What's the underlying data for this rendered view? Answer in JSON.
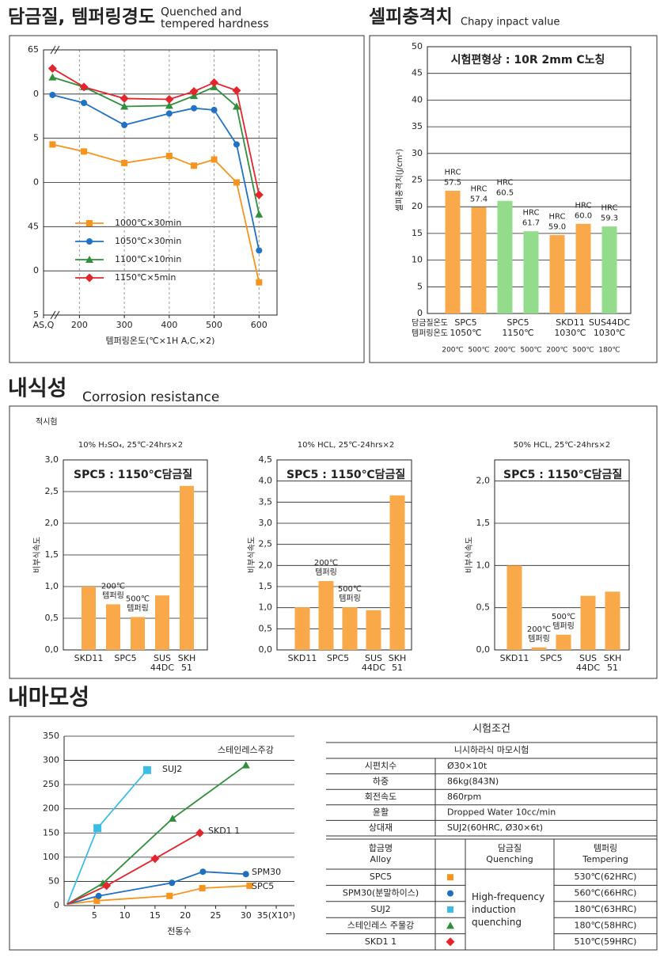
{
  "sections": {
    "corrosion": {
      "title": "내식성",
      "subtitle": "Corrosion resistance",
      "note": "적시험"
    },
    "wear": {
      "title": "내마모성"
    }
  },
  "chart_data": [
    {
      "type": "line",
      "title": "담금질, 템퍼링경도",
      "subtitle": "Quenched and\ntempered hardness",
      "x": [
        140,
        210,
        300,
        400,
        455,
        500,
        550,
        600
      ],
      "xlim": [
        120,
        640
      ],
      "xticks": [
        {
          "value": 120,
          "label": "AS,Q"
        },
        200,
        300,
        400,
        500,
        600
      ],
      "ylim": [
        35,
        65
      ],
      "yticks": [
        65,
        {
          "value": 60,
          "label": "0"
        },
        {
          "value": 55,
          "label": "5"
        },
        {
          "value": 50,
          "label": "0"
        },
        45,
        {
          "value": 40,
          "label": "0"
        },
        {
          "value": 35,
          "label": "5"
        }
      ],
      "xlabel": "템퍼링온도(℃×1H A,C,×2)",
      "grid": true,
      "legend": "lower left",
      "series": [
        {
          "name": "1000℃×30min",
          "color": "#f7941d",
          "marker": "square",
          "values": [
            54.3,
            53.5,
            52.2,
            53.0,
            51.9,
            52.6,
            50.0,
            38.7
          ]
        },
        {
          "name": "1050℃×30min",
          "color": "#1f72c4",
          "marker": "circle",
          "values": [
            59.9,
            59.0,
            56.5,
            57.8,
            58.4,
            58.2,
            54.3,
            42.3
          ]
        },
        {
          "name": "1100℃×10min",
          "color": "#2f8f3a",
          "marker": "triangle",
          "values": [
            61.9,
            60.8,
            58.6,
            58.7,
            59.8,
            60.8,
            58.6,
            46.4
          ]
        },
        {
          "name": "1150℃×5min",
          "color": "#e3262e",
          "marker": "diamond",
          "values": [
            62.9,
            60.8,
            59.5,
            59.4,
            60.3,
            61.3,
            60.4,
            48.6
          ]
        }
      ]
    },
    {
      "type": "bar",
      "title": "셀피충격치",
      "subtitle": "Chapy inpact value",
      "annotation": "시험편형상 : 10R 2mm C노칭",
      "ylabel": "셀피충격치(J/cm²)",
      "ylim": [
        0,
        50
      ],
      "yticks": [
        0,
        5,
        10,
        15,
        20,
        25,
        30,
        35,
        40,
        45,
        50
      ],
      "grid": true,
      "categories": [
        "200℃",
        "500℃",
        "200℃",
        "500℃",
        "200℃",
        "500℃",
        "180℃"
      ],
      "values": [
        23.0,
        19.9,
        21.1,
        15.4,
        14.7,
        16.8,
        16.3
      ],
      "colors": [
        "#f9a84a",
        "#f9a84a",
        "#93dc8c",
        "#93dc8c",
        "#f9a84a",
        "#f9a84a",
        "#93dc8c"
      ],
      "bar_labels": [
        "HRC\n57.5",
        "HRC\n57.4",
        "HRC\n60.5",
        "HRC\n61.7",
        "HRC\n59.0",
        "HRC\n60.0",
        "HRC\n59.3"
      ],
      "row_labels": [
        "담금질온도",
        "템퍼링온도"
      ],
      "groups": [
        {
          "name": "SPC5",
          "quench": "1050℃",
          "bars": [
            0,
            1
          ]
        },
        {
          "name": "SPC5",
          "quench": "1150℃",
          "bars": [
            2,
            3
          ]
        },
        {
          "name": "SKD11",
          "quench": "1030℃",
          "bars": [
            4,
            5
          ]
        },
        {
          "name": "SUS44DC",
          "quench": "1030℃",
          "bars": [
            6
          ]
        }
      ]
    },
    {
      "type": "bar",
      "subtitle": "10% H₂SO₄, 25℃-24hrs×2",
      "annotation": "SPC5 : 1150℃담금질",
      "ylabel": "비부식속도",
      "ylim": [
        0,
        3
      ],
      "yticks": [
        {
          "value": 0,
          "label": "0,0"
        },
        {
          "value": 0.5,
          "label": "0,5"
        },
        {
          "value": 1,
          "label": "1,0"
        },
        {
          "value": 1.5,
          "label": "1,5"
        },
        {
          "value": 2,
          "label": "2,0"
        },
        {
          "value": 2.5,
          "label": "2,5"
        },
        {
          "value": 3,
          "label": "3,0"
        }
      ],
      "grid": true,
      "color": "#f9a84a",
      "categories": [
        "SKD11",
        "SPC5",
        null,
        "SUS\n44DC",
        "SKH\n51"
      ],
      "values": [
        1.0,
        0.72,
        0.52,
        0.86,
        2.59
      ],
      "bar_labels": [
        null,
        "200℃\n템퍼링",
        "500℃\n템퍼링",
        null,
        null
      ]
    },
    {
      "type": "bar",
      "subtitle": "10% HCL, 25℃-24hrs×2",
      "annotation": "SPC5 : 1150℃담금질",
      "ylabel": "비부식속도",
      "ylim": [
        0,
        4.5
      ],
      "yticks": [
        {
          "value": 0,
          "label": "0,0"
        },
        {
          "value": 0.5,
          "label": "0,5"
        },
        {
          "value": 1,
          "label": "1,0"
        },
        {
          "value": 1.5,
          "label": "1,5"
        },
        {
          "value": 2,
          "label": "2,0"
        },
        {
          "value": 2.5,
          "label": "2,5"
        },
        {
          "value": 3,
          "label": "3,0"
        },
        {
          "value": 3.5,
          "label": "3,5"
        },
        {
          "value": 4,
          "label": "4,0"
        },
        {
          "value": 4.5,
          "label": "4,5"
        }
      ],
      "grid": true,
      "color": "#f9a84a",
      "categories": [
        "SKD11",
        "SPC5",
        null,
        "SUS\n44DC",
        "SKH\n51"
      ],
      "values": [
        1.01,
        1.63,
        1.01,
        0.94,
        3.66
      ],
      "bar_labels": [
        null,
        "200℃\n템퍼링",
        "500℃\n템퍼링",
        null,
        null
      ]
    },
    {
      "type": "bar",
      "subtitle": "50% HCL, 25℃-24hrs×2",
      "annotation": "SPC5 : 1150℃담금질",
      "ylabel": "비부식속도",
      "ylim": [
        0,
        2.25
      ],
      "yticks": [
        {
          "value": 0,
          "label": "0,0"
        },
        {
          "value": 0.5,
          "label": "0,5"
        },
        {
          "value": 1,
          "label": "1,0"
        },
        {
          "value": 1.5,
          "label": "1,5"
        },
        {
          "value": 2,
          "label": "2,0"
        }
      ],
      "grid": true,
      "color": "#f9a84a",
      "categories": [
        "SKD11",
        "SPC5",
        null,
        "SUS\n44DC",
        "SKH\n51"
      ],
      "values": [
        1.0,
        0.03,
        0.18,
        0.64,
        0.69
      ],
      "bar_labels": [
        null,
        "200℃\n템퍼링",
        "500℃\n템퍼링",
        null,
        null
      ]
    },
    {
      "type": "line",
      "xlim": [
        0,
        38
      ],
      "xticks": [
        5,
        10,
        15,
        20,
        25,
        30,
        {
          "value": 35,
          "label": "35(X10³)"
        }
      ],
      "ylim": [
        0,
        350
      ],
      "yticks": [
        0,
        50,
        100,
        150,
        200,
        250,
        300,
        350
      ],
      "xlabel": "전동수",
      "grid": true,
      "series": [
        {
          "name": "SPC5",
          "color": "#f7941d",
          "marker": "square",
          "x": [
            0.5,
            5.4,
            17.4,
            22.8,
            30.6
          ],
          "values": [
            3,
            10,
            20,
            36,
            41
          ]
        },
        {
          "name": "SPM30",
          "color": "#1f6fc0",
          "marker": "circle",
          "x": [
            0.5,
            5.7,
            17.8,
            22.9,
            30.0
          ],
          "values": [
            3,
            20,
            47,
            70,
            65
          ]
        },
        {
          "name": "SUJ2",
          "color": "#3bbde8",
          "marker": "square",
          "x": [
            0.5,
            5.5,
            13.7
          ],
          "values": [
            3,
            160,
            280
          ]
        },
        {
          "name": "스테인레스주강",
          "color": "#2f8f3a",
          "marker": "triangle",
          "x": [
            0.5,
            6.4,
            17.9,
            30.0
          ],
          "values": [
            3,
            46,
            180,
            290
          ]
        },
        {
          "name": "SKD1 1",
          "color": "#e3262e",
          "marker": "diamond",
          "x": [
            0.5,
            7.0,
            15.0,
            22.4
          ],
          "values": [
            3,
            41,
            97,
            150
          ]
        }
      ]
    }
  ],
  "wear_table": {
    "title": "시험조건",
    "method": "니시하라식 마모시험",
    "conditions": [
      [
        "시편치수",
        "Ø30×10t"
      ],
      [
        "하중",
        "86kg(843N)"
      ],
      [
        "회전속도",
        "860rpm"
      ],
      [
        "윤활",
        "Dropped Water 10cc/min"
      ],
      [
        "상대재",
        "SUJ2(60HRC, Ø30×6t)"
      ]
    ],
    "headers": [
      "합금명\nAlloy",
      "담금질\nQuenching",
      "템퍼링\nTempering"
    ],
    "quenching": "High-frequency\ninduction\nquenching",
    "alloys": [
      {
        "name": "SPC5",
        "tempering": "530℃(62HRC)"
      },
      {
        "name": "SPM30(분말하이스)",
        "tempering": "560℃(66HRC)"
      },
      {
        "name": "SUJ2",
        "tempering": "180℃(63HRC)"
      },
      {
        "name": "스테인레스 주물강",
        "tempering": "180℃(58HRC)"
      },
      {
        "name": "SKD1 1",
        "tempering": "510℃(59HRC)"
      }
    ]
  }
}
